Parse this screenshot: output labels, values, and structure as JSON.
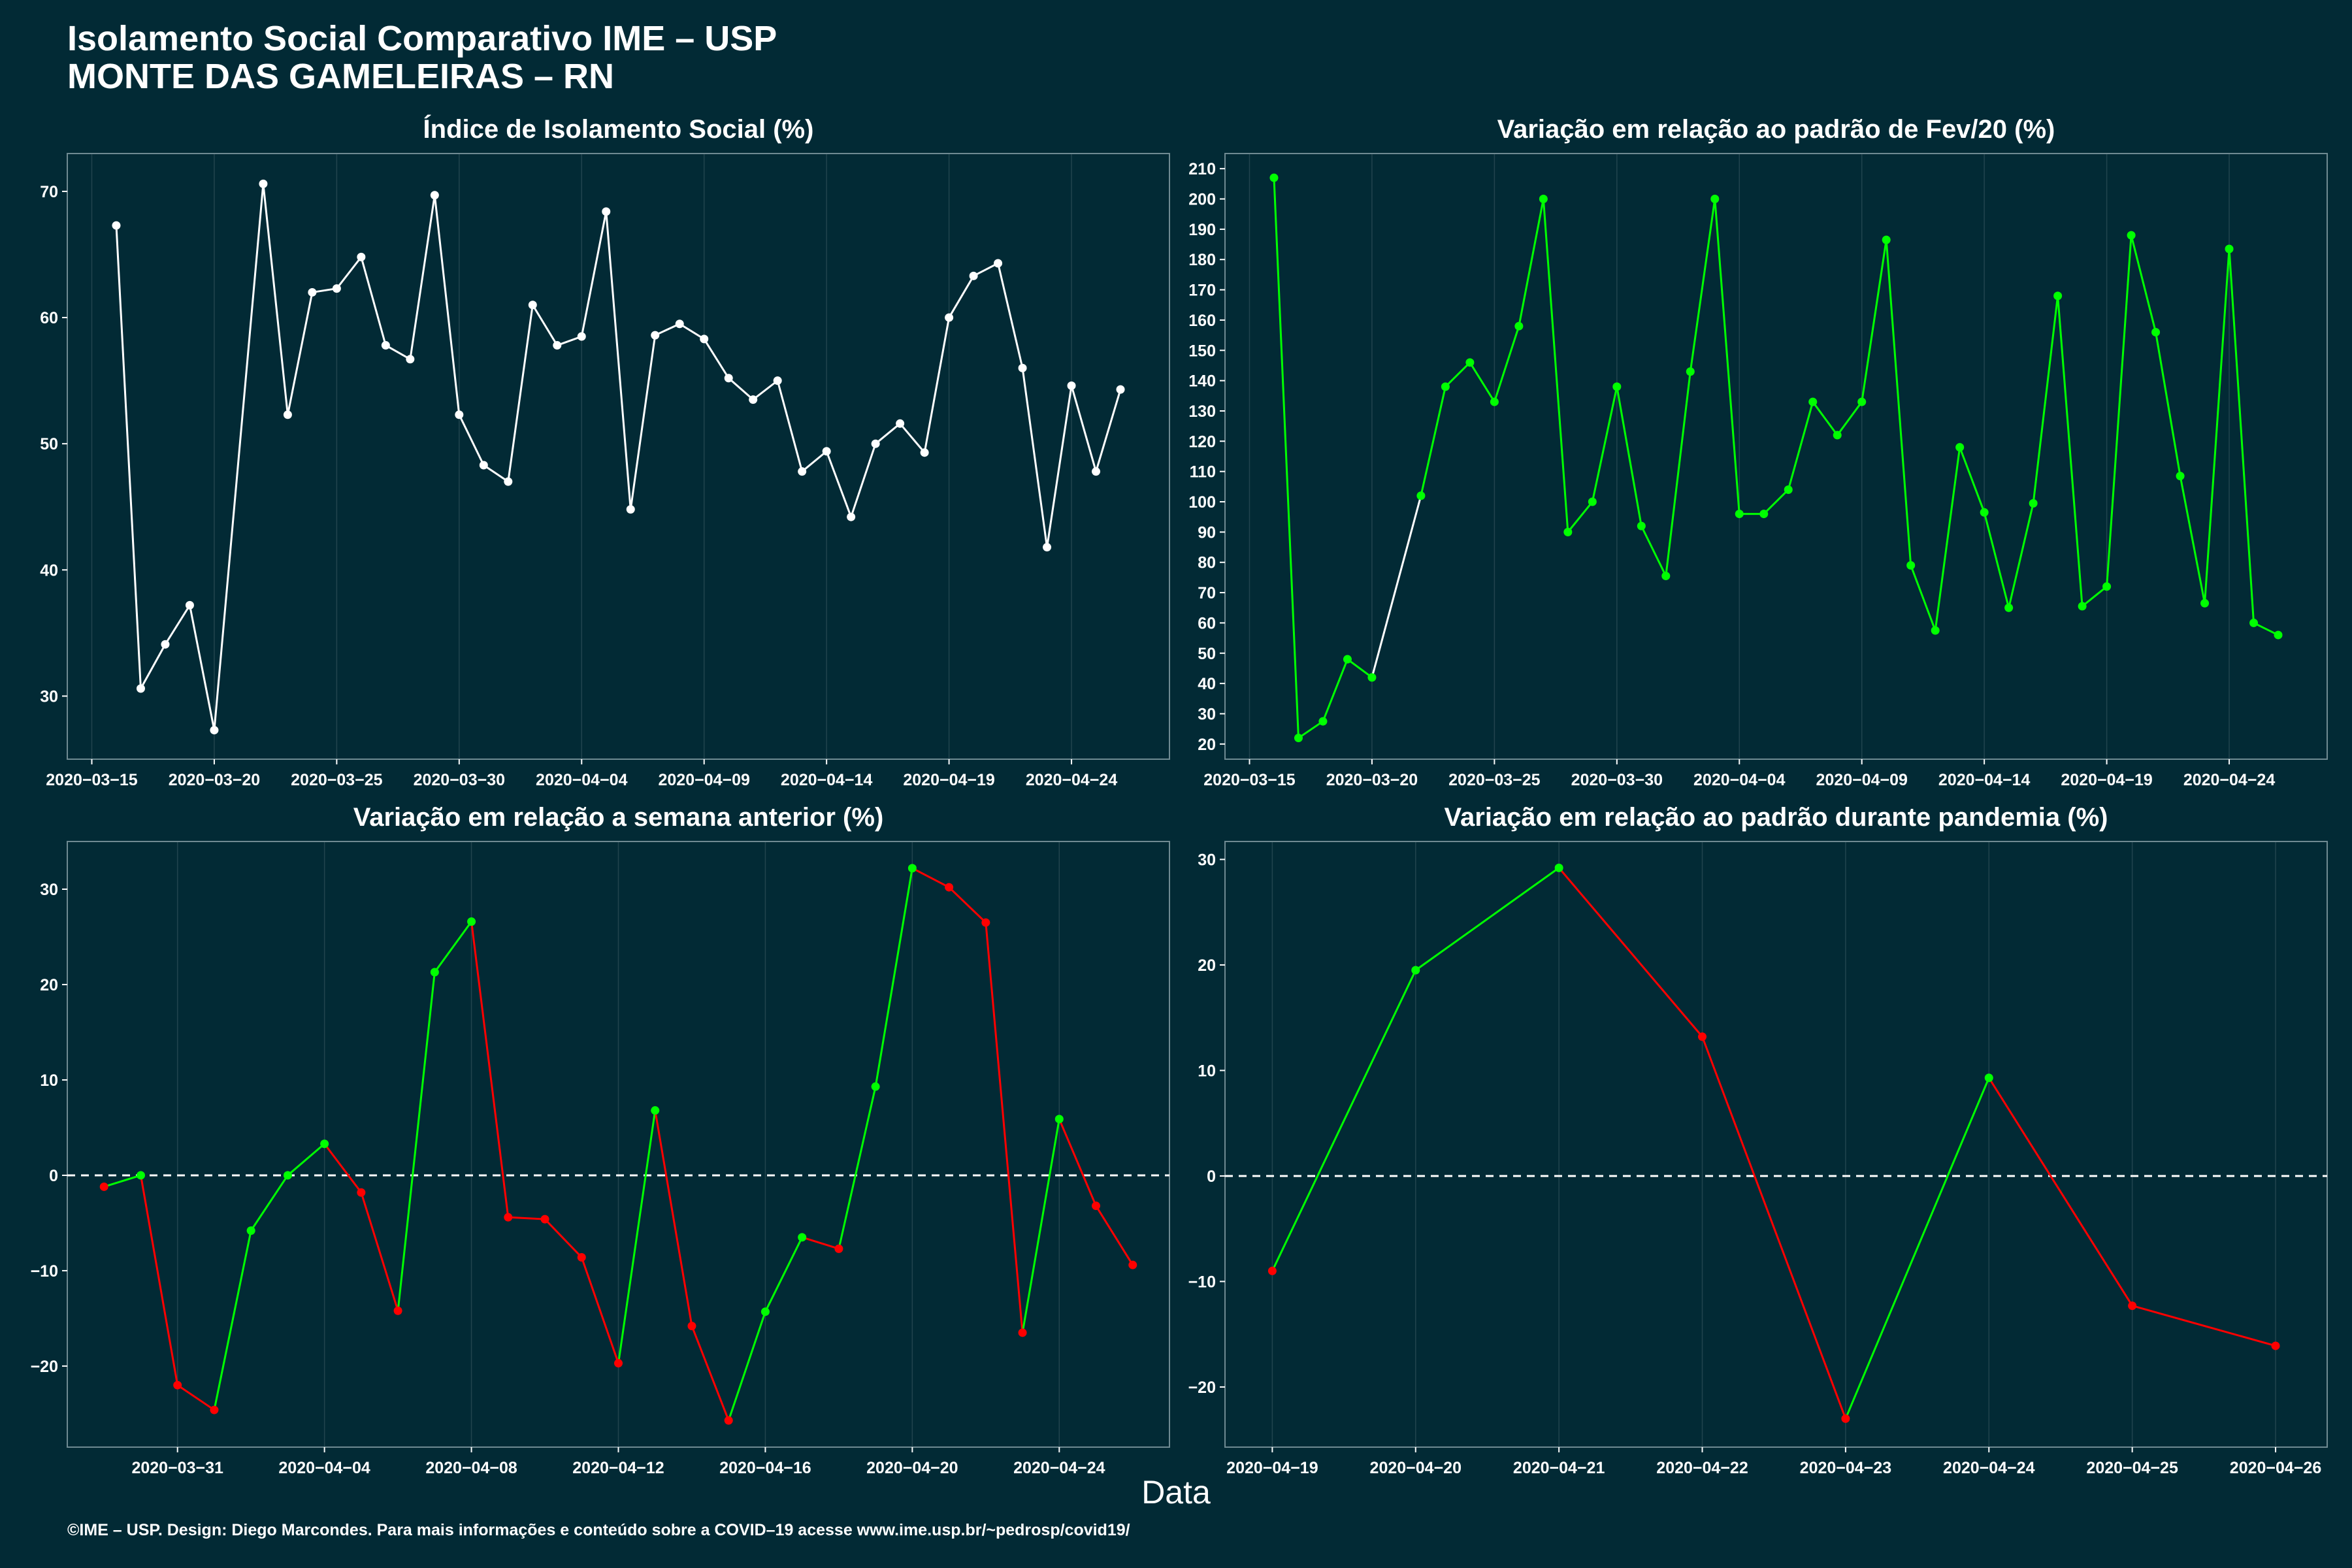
{
  "title": {
    "line1": "Isolamento Social Comparativo IME – USP",
    "line2": "MONTE DAS GAMELEIRAS – RN"
  },
  "x_axis_label": "Data",
  "footer": "©IME – USP. Design: Diego Marcondes. Para mais informações e conteúdo sobre a COVID–19 acesse www.ime.usp.br/~pedrosp/covid19/",
  "colors": {
    "background": "#022a35",
    "white": "#ffffff",
    "green": "#00ff00",
    "red": "#ff0000",
    "grid": "#3d5a63"
  },
  "chart_data": [
    {
      "id": "isolamento",
      "type": "line",
      "title": "Índice de Isolamento Social (%)",
      "xlabel": "",
      "ylabel": "",
      "x_type": "date",
      "xlim": [
        "2020-03-14",
        "2020-04-28"
      ],
      "ylim": [
        25,
        73
      ],
      "yticks": [
        30,
        40,
        50,
        60,
        70
      ],
      "xticks": [
        "2020-03-15",
        "2020-03-20",
        "2020-03-25",
        "2020-03-30",
        "2020-04-04",
        "2020-04-09",
        "2020-04-14",
        "2020-04-19",
        "2020-04-24"
      ],
      "color_mode": "white",
      "points": [
        [
          "2020-03-16",
          67.3
        ],
        [
          "2020-03-17",
          30.6
        ],
        [
          "2020-03-18",
          34.1
        ],
        [
          "2020-03-19",
          37.2
        ],
        [
          "2020-03-20",
          27.3
        ],
        [
          "2020-03-22",
          70.6
        ],
        [
          "2020-03-23",
          52.3
        ],
        [
          "2020-03-24",
          62.0
        ],
        [
          "2020-03-25",
          62.3
        ],
        [
          "2020-03-26",
          64.8
        ],
        [
          "2020-03-27",
          57.8
        ],
        [
          "2020-03-28",
          56.7
        ],
        [
          "2020-03-29",
          69.7
        ],
        [
          "2020-03-30",
          52.3
        ],
        [
          "2020-03-31",
          48.3
        ],
        [
          "2020-04-01",
          47.0
        ],
        [
          "2020-04-02",
          61.0
        ],
        [
          "2020-04-03",
          57.8
        ],
        [
          "2020-04-04",
          58.5
        ],
        [
          "2020-04-05",
          68.4
        ],
        [
          "2020-04-06",
          44.8
        ],
        [
          "2020-04-07",
          58.6
        ],
        [
          "2020-04-08",
          59.5
        ],
        [
          "2020-04-09",
          58.3
        ],
        [
          "2020-04-10",
          55.2
        ],
        [
          "2020-04-11",
          53.5
        ],
        [
          "2020-04-12",
          55.0
        ],
        [
          "2020-04-13",
          47.8
        ],
        [
          "2020-04-14",
          49.4
        ],
        [
          "2020-04-15",
          44.2
        ],
        [
          "2020-04-16",
          50.0
        ],
        [
          "2020-04-17",
          51.6
        ],
        [
          "2020-04-18",
          49.3
        ],
        [
          "2020-04-19",
          60.0
        ],
        [
          "2020-04-20",
          63.3
        ],
        [
          "2020-04-21",
          64.3
        ],
        [
          "2020-04-22",
          56.0
        ],
        [
          "2020-04-23",
          41.8
        ],
        [
          "2020-04-24",
          54.6
        ],
        [
          "2020-04-25",
          47.8
        ],
        [
          "2020-04-26",
          54.3
        ]
      ]
    },
    {
      "id": "fev20",
      "type": "line",
      "title": "Variação em relação ao padrão de Fev/20 (%)",
      "xlabel": "",
      "ylabel": "",
      "x_type": "date",
      "xlim": [
        "2020-03-14",
        "2020-04-28"
      ],
      "ylim": [
        15,
        215
      ],
      "yticks": [
        20,
        30,
        40,
        50,
        60,
        70,
        80,
        90,
        100,
        110,
        120,
        130,
        140,
        150,
        160,
        170,
        180,
        190,
        200,
        210
      ],
      "xticks": [
        "2020-03-15",
        "2020-03-20",
        "2020-03-25",
        "2020-03-30",
        "2020-04-04",
        "2020-04-09",
        "2020-04-14",
        "2020-04-19",
        "2020-04-24"
      ],
      "color_mode": "green",
      "white_segments_until": "2020-03-22",
      "points": [
        [
          "2020-03-16",
          207
        ],
        [
          "2020-03-17",
          22
        ],
        [
          "2020-03-18",
          27.5
        ],
        [
          "2020-03-19",
          48
        ],
        [
          "2020-03-20",
          42
        ],
        [
          "2020-03-22",
          102
        ],
        [
          "2020-03-23",
          138
        ],
        [
          "2020-03-24",
          146
        ],
        [
          "2020-03-25",
          133
        ],
        [
          "2020-03-26",
          158
        ],
        [
          "2020-03-27",
          200
        ],
        [
          "2020-03-28",
          90
        ],
        [
          "2020-03-29",
          100
        ],
        [
          "2020-03-30",
          138
        ],
        [
          "2020-03-31",
          92
        ],
        [
          "2020-04-01",
          75.5
        ],
        [
          "2020-04-02",
          143
        ],
        [
          "2020-04-03",
          200
        ],
        [
          "2020-04-04",
          96
        ],
        [
          "2020-04-05",
          96
        ],
        [
          "2020-04-06",
          104
        ],
        [
          "2020-04-07",
          133
        ],
        [
          "2020-04-08",
          122
        ],
        [
          "2020-04-09",
          133
        ],
        [
          "2020-04-10",
          186.5
        ],
        [
          "2020-04-11",
          79
        ],
        [
          "2020-04-12",
          57.5
        ],
        [
          "2020-04-13",
          118
        ],
        [
          "2020-04-14",
          96.5
        ],
        [
          "2020-04-15",
          65
        ],
        [
          "2020-04-16",
          99.5
        ],
        [
          "2020-04-17",
          168
        ],
        [
          "2020-04-18",
          65.5
        ],
        [
          "2020-04-19",
          72
        ],
        [
          "2020-04-20",
          188
        ],
        [
          "2020-04-21",
          156
        ],
        [
          "2020-04-22",
          108.5
        ],
        [
          "2020-04-23",
          66.5
        ],
        [
          "2020-04-24",
          183.5
        ],
        [
          "2020-04-25",
          60
        ],
        [
          "2020-04-26",
          56
        ]
      ]
    },
    {
      "id": "semana",
      "type": "line",
      "title": "Variação em relação a semana anterior (%)",
      "xlabel": "",
      "ylabel": "",
      "x_type": "date",
      "xlim": [
        "2020-03-28",
        "2020-04-27"
      ],
      "ylim": [
        -28.5,
        35
      ],
      "yticks": [
        -20,
        -10,
        0,
        10,
        20,
        30
      ],
      "xticks": [
        "2020-03-31",
        "2020-04-04",
        "2020-04-08",
        "2020-04-12",
        "2020-04-16",
        "2020-04-20",
        "2020-04-24"
      ],
      "color_mode": "updown",
      "reference_line": 0,
      "points": [
        [
          "2020-03-29",
          -1.2
        ],
        [
          "2020-03-30",
          0.0
        ],
        [
          "2020-03-31",
          -22.0
        ],
        [
          "2020-04-01",
          -24.6
        ],
        [
          "2020-04-02",
          -5.8
        ],
        [
          "2020-04-03",
          0.0
        ],
        [
          "2020-04-04",
          3.3
        ],
        [
          "2020-04-05",
          -1.8
        ],
        [
          "2020-04-06",
          -14.2
        ],
        [
          "2020-04-07",
          21.3
        ],
        [
          "2020-04-08",
          26.6
        ],
        [
          "2020-04-09",
          -4.4
        ],
        [
          "2020-04-10",
          -4.6
        ],
        [
          "2020-04-11",
          -8.6
        ],
        [
          "2020-04-12",
          -19.7
        ],
        [
          "2020-04-13",
          6.8
        ],
        [
          "2020-04-14",
          -15.8
        ],
        [
          "2020-04-15",
          -25.7
        ],
        [
          "2020-04-16",
          -14.3
        ],
        [
          "2020-04-17",
          -6.5
        ],
        [
          "2020-04-18",
          -7.7
        ],
        [
          "2020-04-19",
          9.3
        ],
        [
          "2020-04-20",
          32.2
        ],
        [
          "2020-04-21",
          30.2
        ],
        [
          "2020-04-22",
          26.5
        ],
        [
          "2020-04-23",
          -16.5
        ],
        [
          "2020-04-24",
          5.9
        ],
        [
          "2020-04-25",
          -3.2
        ],
        [
          "2020-04-26",
          -9.4
        ]
      ]
    },
    {
      "id": "pandemia",
      "type": "line",
      "title": "Variação em relação ao padrão durante pandemia (%)",
      "xlabel": "",
      "ylabel": "",
      "x_type": "date",
      "xlim": [
        "2020-04-18.67",
        "2020-04-26.36"
      ],
      "ylim": [
        -25.7,
        31.7
      ],
      "yticks": [
        -20,
        -10,
        0,
        10,
        20,
        30
      ],
      "xticks": [
        "2020-04-19",
        "2020-04-20",
        "2020-04-21",
        "2020-04-22",
        "2020-04-23",
        "2020-04-24",
        "2020-04-25",
        "2020-04-26"
      ],
      "color_mode": "updown",
      "reference_line": 0,
      "points": [
        [
          "2020-04-19",
          -9.0
        ],
        [
          "2020-04-20",
          19.5
        ],
        [
          "2020-04-21",
          29.2
        ],
        [
          "2020-04-22",
          13.2
        ],
        [
          "2020-04-23",
          -23.0
        ],
        [
          "2020-04-24",
          9.3
        ],
        [
          "2020-04-25",
          -12.3
        ],
        [
          "2020-04-26",
          -16.1
        ]
      ]
    }
  ]
}
